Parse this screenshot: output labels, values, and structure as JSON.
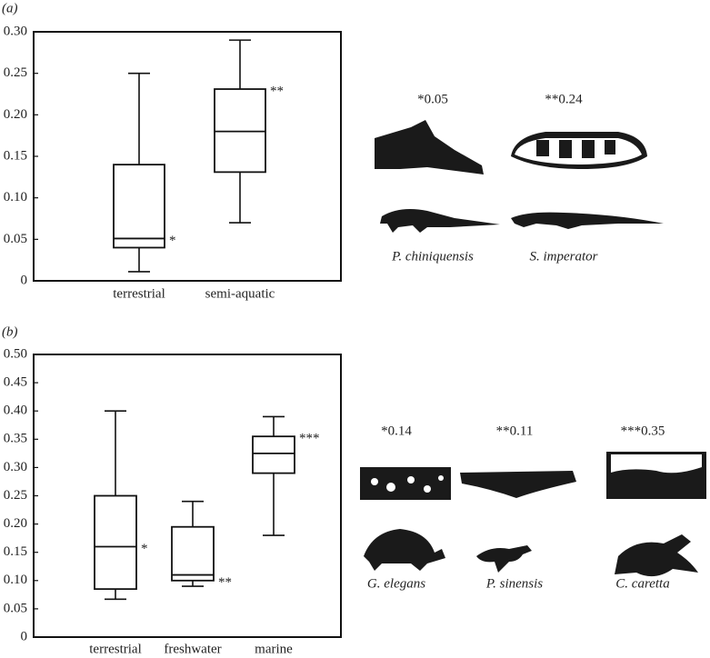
{
  "chart_data": [
    {
      "type": "box",
      "panel_label": "(a)",
      "categories": [
        "terrestrial",
        "semi-aquatic"
      ],
      "min": [
        0.011,
        0.07
      ],
      "q1": [
        0.04,
        0.131
      ],
      "median": [
        0.051,
        0.18
      ],
      "q3": [
        0.14,
        0.231
      ],
      "max": [
        0.25,
        0.29
      ],
      "box_annotations": [
        "*",
        "**"
      ],
      "ylim": [
        0,
        0.3
      ],
      "yticks": [
        0,
        0.05,
        {
          "value": 0.1,
          "label": "0.10"
        },
        0.15,
        {
          "value": 0.2,
          "label": "0.20"
        },
        0.25,
        {
          "value": 0.3,
          "label": "0.30"
        }
      ],
      "specimens": [
        {
          "label": "*0.05",
          "name": "P. chiniquensis"
        },
        {
          "label": "**0.24",
          "name": "S. imperator"
        }
      ]
    },
    {
      "type": "box",
      "panel_label": "(b)",
      "categories": [
        "terrestrial",
        "freshwater",
        "marine"
      ],
      "min": [
        0.067,
        0.09,
        0.18
      ],
      "q1": [
        0.085,
        0.1,
        0.29
      ],
      "median": [
        0.16,
        0.11,
        0.325
      ],
      "q3": [
        0.25,
        0.195,
        0.355
      ],
      "max": [
        0.4,
        0.24,
        0.39
      ],
      "box_annotations": [
        "*",
        "**",
        "***"
      ],
      "ylim": [
        0,
        0.5
      ],
      "yticks": [
        0,
        0.05,
        {
          "value": 0.1,
          "label": "0.10"
        },
        0.15,
        {
          "value": 0.2,
          "label": "0.20"
        },
        0.25,
        {
          "value": 0.3,
          "label": "0.30"
        },
        0.35,
        {
          "value": 0.4,
          "label": "0.40"
        },
        0.45,
        {
          "value": 0.5,
          "label": "0.50"
        }
      ],
      "specimens": [
        {
          "label": "*0.14",
          "name": "G. elegans"
        },
        {
          "label": "**0.11",
          "name": "P. sinensis"
        },
        {
          "label": "***0.35",
          "name": "C. caretta"
        }
      ]
    }
  ]
}
